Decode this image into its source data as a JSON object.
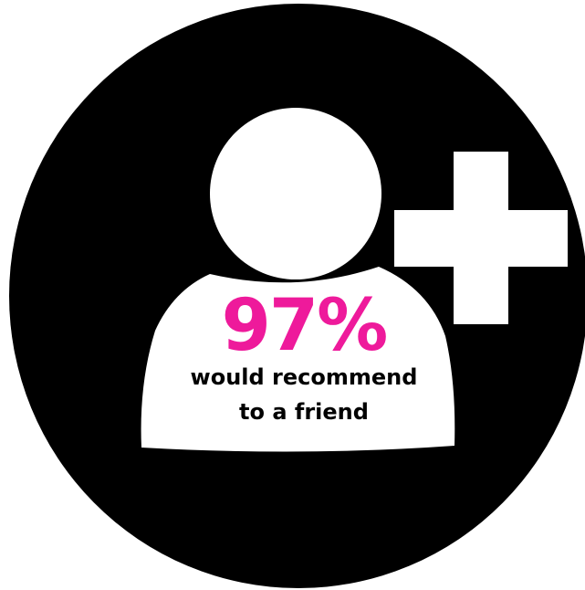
{
  "badge": {
    "background_color": "#000000",
    "icon": "add-user-icon",
    "icon_color": "#ffffff"
  },
  "stat": {
    "value": "97%",
    "value_color": "#ee1a9b",
    "caption_line_1": "would recommend",
    "caption_line_2": "to a friend",
    "caption_color": "#000000"
  }
}
